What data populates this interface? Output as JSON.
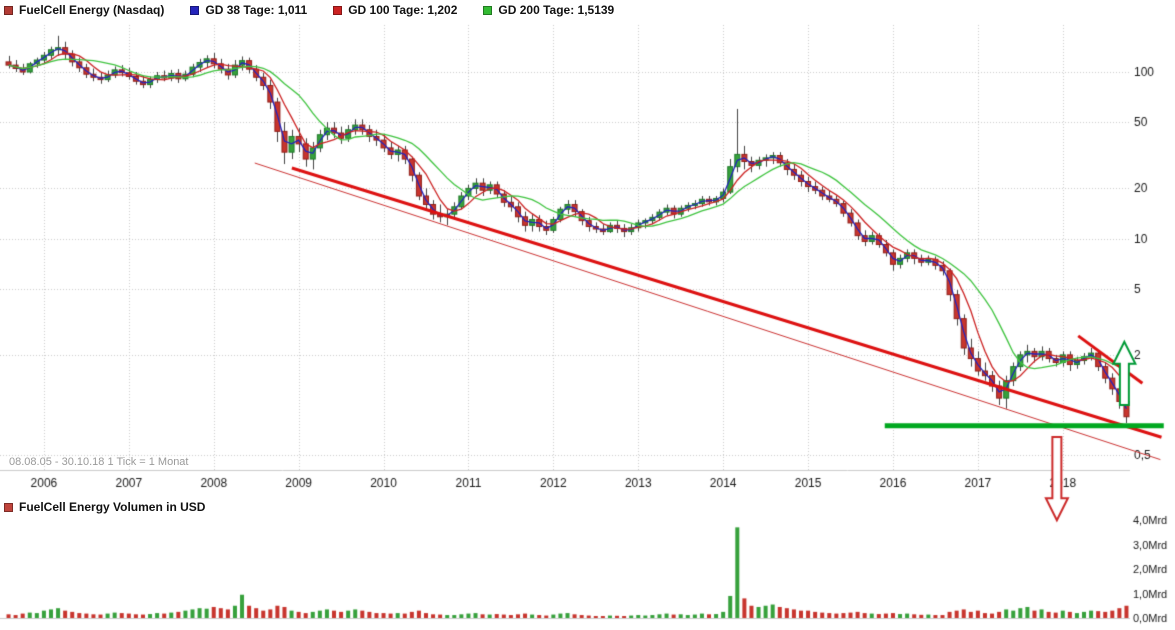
{
  "header": {
    "series": [
      {
        "label": "FuelCell Energy (Nasdaq)",
        "color": "#b23b34"
      },
      {
        "label": "GD 38 Tage: 1,011",
        "color": "#2424bb"
      },
      {
        "label": "GD 100 Tage: 1,202",
        "color": "#cc2222"
      },
      {
        "label": "GD 200 Tage: 1,5139",
        "color": "#33bb33"
      }
    ]
  },
  "footer_note": "08.08.05 - 30.10.18   1 Tick = 1 Monat",
  "volume_header": {
    "label": "FuelCell Energy Volumen in USD",
    "color": "#c0443c"
  },
  "chart_data": {
    "type": "candlestick+volume",
    "title": "FuelCell Energy (Nasdaq)",
    "start": "2005-08",
    "end": "2018-10",
    "interval": "1 Monat",
    "scale": "log",
    "x_tick_labels": [
      "2006",
      "2007",
      "2008",
      "2009",
      "2010",
      "2011",
      "2012",
      "2013",
      "2014",
      "2015",
      "2016",
      "2017",
      "2018"
    ],
    "price_axis": {
      "ticks": [
        100,
        50,
        20,
        10,
        5,
        2,
        0.5
      ],
      "tick_labels": [
        "100",
        "50",
        "20",
        "10",
        "5",
        "2",
        "0,5"
      ]
    },
    "volume_axis": {
      "unit": "Mrd USD",
      "ticks": [
        4,
        3,
        2,
        1,
        0
      ],
      "tick_labels": [
        "4,0Mrd",
        "3,0Mrd",
        "2,0Mrd",
        "1,0Mrd",
        "0,0Mrd"
      ],
      "max": 4.0
    },
    "colors": {
      "up": "#37a13c",
      "down": "#c8352e",
      "wick": "#444444",
      "ma38": "#2424bb",
      "ma100": "#cc2222",
      "ma200": "#3fc43f"
    },
    "moving_averages": [
      {
        "name": "GD 38 Tage",
        "window_months": 2,
        "color": "#2424bb",
        "last_value": "1,011"
      },
      {
        "name": "GD 100 Tage",
        "window_months": 5,
        "color": "#cc2222",
        "last_value": "1,202"
      },
      {
        "name": "GD 200 Tage",
        "window_months": 10,
        "color": "#3fc43f",
        "last_value": "1,5139"
      }
    ],
    "candle_format": [
      "open",
      "high",
      "low",
      "close"
    ],
    "candles": [
      [
        115,
        125,
        105,
        110
      ],
      [
        110,
        118,
        100,
        105
      ],
      [
        105,
        112,
        96,
        100
      ],
      [
        100,
        115,
        98,
        112
      ],
      [
        112,
        122,
        106,
        118
      ],
      [
        118,
        132,
        112,
        126
      ],
      [
        126,
        142,
        120,
        136
      ],
      [
        136,
        165,
        125,
        140
      ],
      [
        140,
        152,
        118,
        128
      ],
      [
        128,
        135,
        108,
        115
      ],
      [
        115,
        122,
        100,
        106
      ],
      [
        106,
        112,
        92,
        97
      ],
      [
        97,
        105,
        88,
        93
      ],
      [
        93,
        100,
        85,
        90
      ],
      [
        90,
        102,
        87,
        96
      ],
      [
        96,
        108,
        92,
        103
      ],
      [
        103,
        110,
        94,
        99
      ],
      [
        99,
        106,
        90,
        94
      ],
      [
        94,
        100,
        84,
        88
      ],
      [
        88,
        95,
        80,
        84
      ],
      [
        84,
        94,
        80,
        90
      ],
      [
        90,
        100,
        86,
        95
      ],
      [
        95,
        102,
        88,
        92
      ],
      [
        92,
        103,
        88,
        98
      ],
      [
        98,
        104,
        86,
        91
      ],
      [
        91,
        102,
        88,
        97
      ],
      [
        97,
        112,
        93,
        107
      ],
      [
        107,
        120,
        100,
        114
      ],
      [
        114,
        126,
        106,
        120
      ],
      [
        120,
        130,
        105,
        112
      ],
      [
        112,
        120,
        98,
        104
      ],
      [
        104,
        112,
        90,
        96
      ],
      [
        96,
        118,
        92,
        110
      ],
      [
        110,
        124,
        102,
        117
      ],
      [
        117,
        122,
        98,
        104
      ],
      [
        104,
        110,
        88,
        93
      ],
      [
        93,
        99,
        78,
        83
      ],
      [
        83,
        90,
        60,
        66
      ],
      [
        66,
        70,
        38,
        44
      ],
      [
        44,
        50,
        28,
        33
      ],
      [
        33,
        45,
        30,
        41
      ],
      [
        41,
        46,
        33,
        37
      ],
      [
        37,
        40,
        27,
        30
      ],
      [
        30,
        38,
        26,
        35
      ],
      [
        35,
        45,
        33,
        42
      ],
      [
        42,
        50,
        39,
        46
      ],
      [
        46,
        50,
        40,
        43
      ],
      [
        43,
        47,
        37,
        40
      ],
      [
        40,
        48,
        38,
        45
      ],
      [
        45,
        52,
        42,
        48
      ],
      [
        48,
        52,
        42,
        45
      ],
      [
        45,
        48,
        38,
        41
      ],
      [
        41,
        45,
        36,
        39
      ],
      [
        39,
        42,
        33,
        35
      ],
      [
        35,
        38,
        30,
        32
      ],
      [
        32,
        36,
        29,
        34
      ],
      [
        34,
        36,
        28,
        30
      ],
      [
        30,
        31,
        22,
        24
      ],
      [
        24,
        25,
        17,
        18
      ],
      [
        18,
        20,
        15,
        16
      ],
      [
        16,
        17,
        13,
        14
      ],
      [
        14,
        16,
        12.5,
        13.5
      ],
      [
        13.5,
        15,
        12,
        14
      ],
      [
        14,
        16.5,
        13,
        15.5
      ],
      [
        15.5,
        19,
        15,
        18
      ],
      [
        18,
        21,
        17,
        20
      ],
      [
        20,
        23,
        18.5,
        21.5
      ],
      [
        21.5,
        23,
        18,
        19.5
      ],
      [
        19.5,
        22,
        18.5,
        21
      ],
      [
        21,
        22,
        17.5,
        18.5
      ],
      [
        18.5,
        19.5,
        15.5,
        16.5
      ],
      [
        16.5,
        18,
        14.5,
        15.5
      ],
      [
        15.5,
        16.5,
        12.5,
        13.5
      ],
      [
        13.5,
        14.5,
        11,
        12
      ],
      [
        12,
        14,
        11,
        13
      ],
      [
        13,
        13.8,
        11,
        11.8
      ],
      [
        11.8,
        12.8,
        10.5,
        11.2
      ],
      [
        11.2,
        13.5,
        10.8,
        13
      ],
      [
        13,
        15.5,
        12.5,
        15
      ],
      [
        15,
        17,
        14,
        16
      ],
      [
        16,
        17,
        13.5,
        14.5
      ],
      [
        14.5,
        15,
        12,
        12.8
      ],
      [
        12.8,
        13.5,
        11,
        11.8
      ],
      [
        11.8,
        12.5,
        10.8,
        11.4
      ],
      [
        11.4,
        12.2,
        10.5,
        11
      ],
      [
        11,
        12.5,
        10.8,
        12
      ],
      [
        12,
        12.8,
        10.8,
        11.5
      ],
      [
        11.5,
        12.2,
        10.2,
        11
      ],
      [
        11,
        12.2,
        10.5,
        11.6
      ],
      [
        11.6,
        13,
        11,
        12.4
      ],
      [
        12.4,
        13.2,
        11.5,
        12.8
      ],
      [
        12.8,
        14,
        12.2,
        13.4
      ],
      [
        13.4,
        15,
        12.8,
        14.4
      ],
      [
        14.4,
        16,
        13.8,
        15.2
      ],
      [
        15.2,
        15.8,
        13.2,
        14
      ],
      [
        14,
        15.8,
        13.5,
        15.2
      ],
      [
        15.2,
        16.5,
        14.5,
        15.8
      ],
      [
        15.8,
        17,
        15,
        16.2
      ],
      [
        16.2,
        18,
        15.5,
        17.2
      ],
      [
        17.2,
        18,
        15.8,
        16.6
      ],
      [
        16.6,
        18,
        15.8,
        17.4
      ],
      [
        17.4,
        20,
        16.5,
        19
      ],
      [
        19,
        30,
        18.5,
        27
      ],
      [
        27,
        60,
        25,
        32
      ],
      [
        32,
        36,
        26,
        29
      ],
      [
        29,
        31,
        25,
        27.5
      ],
      [
        27.5,
        31,
        26,
        29.5
      ],
      [
        29.5,
        32,
        27,
        30.5
      ],
      [
        30.5,
        33,
        28,
        31.5
      ],
      [
        31.5,
        33,
        27,
        28.5
      ],
      [
        28.5,
        30,
        24,
        26
      ],
      [
        26,
        28,
        22.5,
        24
      ],
      [
        24,
        25.5,
        20.5,
        22
      ],
      [
        22,
        23.5,
        19,
        20.5
      ],
      [
        20.5,
        22,
        18.5,
        19.5
      ],
      [
        19.5,
        20.5,
        17,
        18
      ],
      [
        18,
        19.5,
        16.5,
        17.2
      ],
      [
        17.2,
        18,
        15.5,
        16.2
      ],
      [
        16.2,
        16.8,
        13.5,
        14.2
      ],
      [
        14.2,
        15,
        11.8,
        12.4
      ],
      [
        12.4,
        13,
        9.8,
        10.4
      ],
      [
        10.4,
        11.2,
        9,
        9.6
      ],
      [
        9.6,
        11,
        9.2,
        10.4
      ],
      [
        10.4,
        10.8,
        8.8,
        9.2
      ],
      [
        9.2,
        9.8,
        7.8,
        8.2
      ],
      [
        8.2,
        8.6,
        6.4,
        7
      ],
      [
        7,
        8,
        6.6,
        7.6
      ],
      [
        7.6,
        8.6,
        7.2,
        8.2
      ],
      [
        8.2,
        8.6,
        7,
        7.6
      ],
      [
        7.6,
        8,
        6.8,
        7.2
      ],
      [
        7.2,
        7.9,
        6.9,
        7.5
      ],
      [
        7.5,
        7.8,
        6.5,
        6.9
      ],
      [
        6.9,
        7.3,
        6,
        6.4
      ],
      [
        6.4,
        6.6,
        4.2,
        4.6
      ],
      [
        4.6,
        4.9,
        3,
        3.3
      ],
      [
        3.3,
        3.5,
        2,
        2.2
      ],
      [
        2.2,
        2.5,
        1.7,
        1.9
      ],
      [
        1.9,
        2.1,
        1.5,
        1.6
      ],
      [
        1.6,
        1.8,
        1.4,
        1.5
      ],
      [
        1.5,
        1.6,
        1.2,
        1.3
      ],
      [
        1.3,
        1.4,
        1,
        1.1
      ],
      [
        1.1,
        1.5,
        0.95,
        1.4
      ],
      [
        1.4,
        1.8,
        1.3,
        1.7
      ],
      [
        1.7,
        2.1,
        1.6,
        2
      ],
      [
        2,
        2.3,
        1.8,
        2.1
      ],
      [
        2.1,
        2.2,
        1.8,
        1.95
      ],
      [
        1.95,
        2.25,
        1.85,
        2.1
      ],
      [
        2.1,
        2.2,
        1.8,
        1.9
      ],
      [
        1.9,
        2,
        1.7,
        1.8
      ],
      [
        1.8,
        2.1,
        1.7,
        2
      ],
      [
        2,
        2.1,
        1.6,
        1.75
      ],
      [
        1.75,
        1.95,
        1.65,
        1.85
      ],
      [
        1.85,
        2.05,
        1.75,
        1.95
      ],
      [
        1.95,
        2.2,
        1.85,
        2.05
      ],
      [
        2.05,
        2.1,
        1.6,
        1.7
      ],
      [
        1.7,
        1.8,
        1.35,
        1.45
      ],
      [
        1.45,
        1.55,
        1.15,
        1.25
      ],
      [
        1.25,
        1.35,
        0.95,
        1.05
      ],
      [
        1.05,
        1.1,
        0.78,
        0.85
      ]
    ],
    "volumes_mrd": [
      0.15,
      0.12,
      0.18,
      0.22,
      0.2,
      0.3,
      0.35,
      0.4,
      0.3,
      0.25,
      0.2,
      0.18,
      0.15,
      0.14,
      0.18,
      0.22,
      0.2,
      0.18,
      0.15,
      0.14,
      0.16,
      0.2,
      0.18,
      0.22,
      0.25,
      0.3,
      0.35,
      0.4,
      0.38,
      0.45,
      0.4,
      0.35,
      0.5,
      0.95,
      0.5,
      0.4,
      0.3,
      0.35,
      0.5,
      0.45,
      0.3,
      0.25,
      0.2,
      0.25,
      0.3,
      0.35,
      0.3,
      0.25,
      0.3,
      0.35,
      0.3,
      0.25,
      0.2,
      0.2,
      0.18,
      0.2,
      0.18,
      0.25,
      0.3,
      0.2,
      0.15,
      0.14,
      0.12,
      0.12,
      0.15,
      0.18,
      0.2,
      0.15,
      0.14,
      0.16,
      0.14,
      0.12,
      0.15,
      0.18,
      0.14,
      0.12,
      0.1,
      0.14,
      0.18,
      0.2,
      0.15,
      0.12,
      0.1,
      0.08,
      0.08,
      0.1,
      0.09,
      0.08,
      0.1,
      0.12,
      0.1,
      0.12,
      0.15,
      0.18,
      0.14,
      0.15,
      0.12,
      0.14,
      0.18,
      0.15,
      0.16,
      0.25,
      0.9,
      3.7,
      0.8,
      0.5,
      0.45,
      0.5,
      0.55,
      0.45,
      0.4,
      0.35,
      0.3,
      0.3,
      0.25,
      0.22,
      0.2,
      0.18,
      0.2,
      0.22,
      0.25,
      0.2,
      0.18,
      0.16,
      0.18,
      0.2,
      0.16,
      0.18,
      0.15,
      0.13,
      0.14,
      0.12,
      0.12,
      0.25,
      0.3,
      0.35,
      0.25,
      0.3,
      0.2,
      0.18,
      0.25,
      0.35,
      0.3,
      0.4,
      0.45,
      0.3,
      0.35,
      0.25,
      0.22,
      0.3,
      0.25,
      0.2,
      0.25,
      0.3,
      0.28,
      0.25,
      0.3,
      0.4,
      0.5
    ],
    "annotations": {
      "trendlines": [
        {
          "x1_frac": 0.255,
          "price1": 26.5,
          "x2_frac": 1.028,
          "price2": 0.64,
          "color": "#dd1111",
          "width": 3
        },
        {
          "x1_frac": 0.222,
          "price1": 28.4,
          "x2_frac": 1.027,
          "price2": 0.47,
          "color": "#cc3333",
          "width": 1
        },
        {
          "x1_frac": 0.954,
          "price1": 2.6,
          "x2_frac": 1.011,
          "price2": 1.35,
          "color": "#dd1111",
          "width": 3
        }
      ],
      "support_line": {
        "x1_frac": 0.782,
        "x2_frac": 1.03,
        "price": 0.75,
        "color": "#00a81f",
        "width": 5
      },
      "arrows": [
        {
          "direction": "up",
          "x_frac": 0.995,
          "tip_frac": 0.712,
          "tail_frac": 0.854,
          "color": "#009a36"
        },
        {
          "direction": "down",
          "x_frac": 0.935,
          "tip_frac": 1.113,
          "tail_frac": 0.926,
          "color": "#cc2a2a"
        }
      ]
    }
  }
}
